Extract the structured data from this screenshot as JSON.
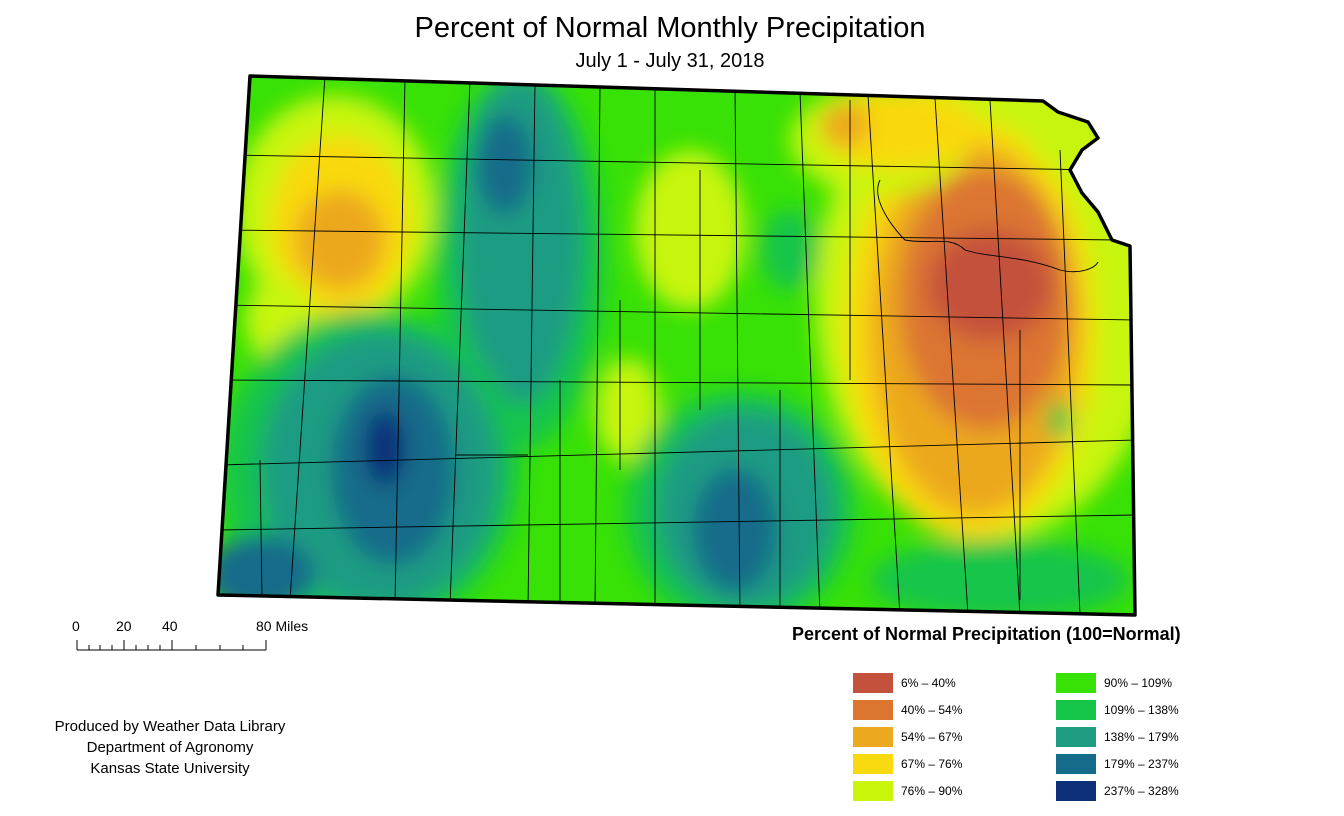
{
  "title": "Percent of Normal Monthly Precipitation",
  "subtitle": "July 1 - July 31, 2018",
  "scale_bar": {
    "ticks": [
      "0",
      "20",
      "40",
      "80 Miles"
    ]
  },
  "credits": [
    "Produced by Weather Data Library",
    "Department of Agronomy",
    "Kansas State University"
  ],
  "legend": {
    "title": "Percent of Normal Precipitation (100=Normal)",
    "items": [
      {
        "label": "6% – 40%",
        "color": "#c4513b"
      },
      {
        "label": "40% – 54%",
        "color": "#dc7530"
      },
      {
        "label": "54% – 67%",
        "color": "#eca81e"
      },
      {
        "label": "67% – 76%",
        "color": "#f9d90f"
      },
      {
        "label": "76% – 90%",
        "color": "#c8f50a"
      },
      {
        "label": "90% – 109%",
        "color": "#38e106"
      },
      {
        "label": "109% – 138%",
        "color": "#14c54a"
      },
      {
        "label": "138% – 179%",
        "color": "#1e9c82"
      },
      {
        "label": "179% – 237%",
        "color": "#156c8a"
      },
      {
        "label": "237% – 328%",
        "color": "#0c2f78"
      }
    ]
  }
}
